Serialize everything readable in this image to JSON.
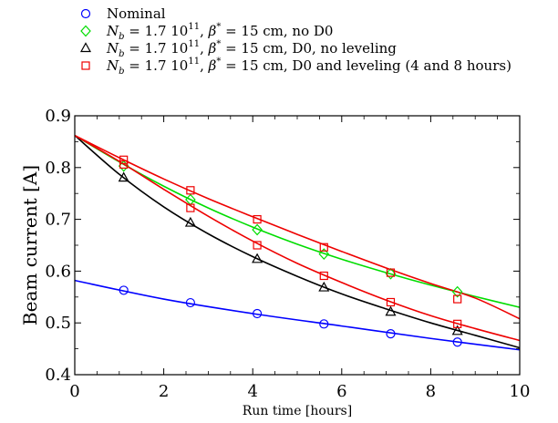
{
  "chart_data": {
    "type": "line",
    "title": "",
    "xlabel": "Run time [hours]",
    "ylabel": "Beam current [A]",
    "xlim": [
      0,
      10
    ],
    "ylim": [
      0.4,
      0.9
    ],
    "xticks": [
      0,
      2,
      4,
      6,
      8,
      10
    ],
    "yticks": [
      0.4,
      0.5,
      0.6,
      0.7,
      0.8,
      0.9
    ],
    "xtick_labels": [
      "0",
      "2",
      "4",
      "6",
      "8",
      "10"
    ],
    "ytick_labels": [
      "0.4",
      "0.5",
      "0.6",
      "0.7",
      "0.8",
      "0.9"
    ],
    "grid": false,
    "legend_position": "top-left above plot",
    "series": [
      {
        "name": "Nominal",
        "color": "#0000ff",
        "marker": "circle",
        "markers": {
          "x": [
            1.1,
            2.6,
            4.1,
            5.6,
            7.1,
            8.6
          ],
          "y": [
            0.563,
            0.539,
            0.518,
            0.498,
            0.479,
            0.463
          ]
        },
        "curve": {
          "x": [
            0,
            2,
            4,
            6,
            8,
            10
          ],
          "y": [
            0.582,
            0.546,
            0.518,
            0.494,
            0.47,
            0.448
          ]
        }
      },
      {
        "name": "N_b = 1.7 10^11, β* = 15 cm, no D0",
        "color": "#00dd00",
        "marker": "diamond",
        "markers": {
          "x": [
            1.1,
            2.6,
            4.1,
            5.6,
            7.1,
            8.6
          ],
          "y": [
            0.803,
            0.738,
            0.68,
            0.633,
            0.595,
            0.56
          ]
        },
        "curve": {
          "x": [
            0,
            1,
            2,
            3,
            4,
            5,
            6,
            7,
            8,
            9,
            10
          ],
          "y": [
            0.862,
            0.811,
            0.764,
            0.722,
            0.685,
            0.652,
            0.623,
            0.597,
            0.573,
            0.551,
            0.53
          ]
        }
      },
      {
        "name": "N_b = 1.7 10^11, β* = 15 cm, D0, no leveling",
        "color": "#000000",
        "marker": "triangle",
        "markers": {
          "x": [
            1.1,
            2.6,
            4.1,
            5.6,
            7.1,
            8.6
          ],
          "y": [
            0.78,
            0.693,
            0.623,
            0.568,
            0.521,
            0.484
          ]
        },
        "curve": {
          "x": [
            0,
            1,
            2,
            3,
            4,
            5,
            6,
            7,
            8,
            9,
            10
          ],
          "y": [
            0.862,
            0.787,
            0.724,
            0.672,
            0.628,
            0.59,
            0.556,
            0.527,
            0.5,
            0.476,
            0.452
          ]
        }
      },
      {
        "name": "N_b = 1.7 10^11, β* = 15 cm, D0 and leveling (4 and 8 hours)",
        "color": "#ee0000",
        "marker": "square",
        "markers": {
          "x": [
            1.1,
            1.1,
            2.6,
            2.6,
            4.1,
            4.1,
            5.6,
            5.6,
            7.1,
            7.1,
            8.6,
            8.6
          ],
          "y": [
            0.815,
            0.806,
            0.756,
            0.722,
            0.7,
            0.65,
            0.646,
            0.591,
            0.597,
            0.54,
            0.546,
            0.498
          ]
        },
        "curves": [
          {
            "x": [
              0,
              1,
              2,
              3,
              4,
              5,
              6,
              7,
              8,
              9,
              10
            ],
            "y": [
              0.862,
              0.819,
              0.778,
              0.74,
              0.705,
              0.671,
              0.638,
              0.606,
              0.576,
              0.548,
              0.508
            ]
          },
          {
            "x": [
              0,
              1,
              2,
              3,
              4,
              5,
              6,
              7,
              8,
              9,
              10
            ],
            "y": [
              0.862,
              0.812,
              0.758,
              0.706,
              0.658,
              0.615,
              0.578,
              0.544,
              0.514,
              0.489,
              0.466
            ]
          }
        ]
      }
    ]
  },
  "legend": {
    "items": [
      {
        "plain": "Nominal",
        "color": "#0000ff",
        "marker": "circle"
      },
      {
        "pre": " = 1.7 10",
        "exp": "11",
        "post": ", ",
        "post2": " = 15 cm, no D0",
        "color": "#00dd00",
        "marker": "diamond"
      },
      {
        "pre": " = 1.7 10",
        "exp": "11",
        "post": ", ",
        "post2": " = 15 cm, D0, no leveling",
        "color": "#000000",
        "marker": "triangle"
      },
      {
        "pre": " = 1.7 10",
        "exp": "11",
        "post": ", ",
        "post2": " = 15 cm, D0 and leveling (4 and 8 hours)",
        "color": "#ee0000",
        "marker": "square"
      }
    ],
    "nb_symbol": "N",
    "nb_sub": "b",
    "beta_symbol": "β",
    "beta_sup": "*"
  }
}
